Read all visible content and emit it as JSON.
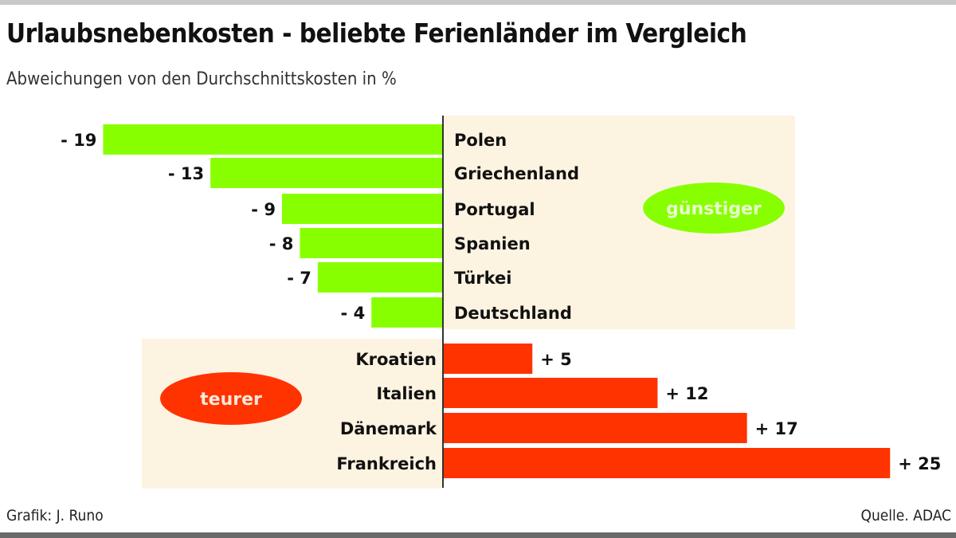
{
  "chart_data": {
    "type": "bar",
    "orientation": "horizontal",
    "title": "Urlaubsnebenkosten - beliebte Ferienländer im Vergleich",
    "subtitle": "Abweichungen von den Durchschnittskosten in %",
    "categories": [
      "Polen",
      "Griechenland",
      "Portugal",
      "Spanien",
      "Türkei",
      "Deutschland",
      "Kroatien",
      "Italien",
      "Dänemark",
      "Frankreich"
    ],
    "values": [
      -19,
      -13,
      -9,
      -8,
      -7,
      -4,
      5,
      12,
      17,
      25
    ],
    "value_labels": [
      "- 19",
      "- 13",
      "- 9",
      "- 8",
      "- 7",
      "- 4",
      "+ 5",
      "+ 12",
      "+ 17",
      "+ 25"
    ],
    "xlim": [
      -19,
      25
    ],
    "grid": false,
    "annotations": [
      {
        "text": "günstiger",
        "group": "negative"
      },
      {
        "text": "teurer",
        "group": "positive"
      }
    ],
    "colors": {
      "negative": "#88ff00",
      "positive": "#ff3300",
      "panel": "#fdf3e1",
      "axis": "#333333"
    }
  },
  "footer": {
    "credit": "Grafik: J. Runo",
    "source": "Quelle. ADAC"
  }
}
